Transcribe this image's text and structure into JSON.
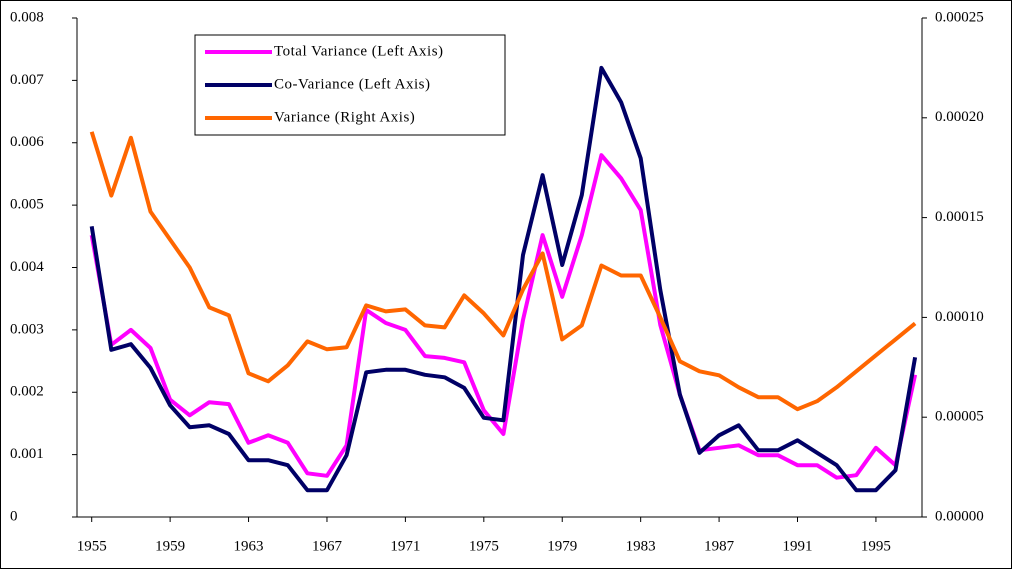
{
  "chart_data": {
    "type": "line",
    "x": [
      1955,
      1956,
      1957,
      1958,
      1959,
      1960,
      1961,
      1962,
      1963,
      1964,
      1965,
      1966,
      1967,
      1968,
      1969,
      1970,
      1971,
      1972,
      1973,
      1974,
      1975,
      1976,
      1977,
      1978,
      1979,
      1980,
      1981,
      1982,
      1983,
      1984,
      1985,
      1986,
      1987,
      1988,
      1989,
      1990,
      1991,
      1992,
      1993,
      1994,
      1995,
      1996,
      1997
    ],
    "xlim": [
      1954.25,
      1997.35
    ],
    "xticks": [
      1955,
      1959,
      1963,
      1967,
      1971,
      1975,
      1979,
      1983,
      1987,
      1991,
      1995
    ],
    "ylim": [
      0,
      0.008
    ],
    "yticks": [
      0,
      0.001,
      0.002,
      0.003,
      0.004,
      0.005,
      0.006,
      0.007,
      0.008
    ],
    "y2lim": [
      0,
      0.00025
    ],
    "y2ticks": [
      {
        "value": 0,
        "label": "0.00000"
      },
      {
        "value": 5e-05,
        "label": "0.00005"
      },
      {
        "value": 0.0001,
        "label": "0.00010"
      },
      {
        "value": 0.00015,
        "label": "0.00015"
      },
      {
        "value": 0.0002,
        "label": "0.00020"
      },
      {
        "value": 0.00025,
        "label": "0.00025"
      }
    ],
    "legend": "upper left",
    "series": [
      {
        "name": "Total Variance (Left Axis)",
        "color": "#ff00ff",
        "values": [
          0.00452,
          0.00276,
          0.003,
          0.00271,
          0.00188,
          0.00163,
          0.00184,
          0.00181,
          0.00119,
          0.00131,
          0.00119,
          0.0007,
          0.00066,
          0.00115,
          0.00332,
          0.00311,
          0.003,
          0.00258,
          0.00255,
          0.00248,
          0.00171,
          0.00133,
          0.00316,
          0.00452,
          0.00353,
          0.00452,
          0.0058,
          0.00543,
          0.00492,
          0.00308,
          0.00196,
          0.00107,
          0.00111,
          0.00115,
          0.00099,
          0.00099,
          0.00083,
          0.00083,
          0.00063,
          0.00067,
          0.00111,
          0.00083,
          0.00228
        ]
      },
      {
        "name": "Co-Variance (Left Axis)",
        "color": "#000066",
        "values": [
          0.00466,
          0.00268,
          0.00277,
          0.00239,
          0.00179,
          0.00144,
          0.00147,
          0.00133,
          0.00091,
          0.00091,
          0.00083,
          0.00043,
          0.00043,
          0.00099,
          0.00232,
          0.00236,
          0.00236,
          0.00228,
          0.00224,
          0.00207,
          0.00159,
          0.00155,
          0.0042,
          0.00548,
          0.00404,
          0.00516,
          0.0072,
          0.00665,
          0.00575,
          0.00364,
          0.00196,
          0.00103,
          0.00131,
          0.00147,
          0.00107,
          0.00107,
          0.00123,
          0.00103,
          0.00083,
          0.00043,
          0.00043,
          0.00075,
          0.00256
        ]
      },
      {
        "name": "Variance (Right Axis)",
        "color": "#ff6600",
        "axis": "y2",
        "values": [
          0.000193,
          0.000161,
          0.00019,
          0.000153,
          0.000139,
          0.000125,
          0.000105,
          0.000101,
          7.2e-05,
          6.8e-05,
          7.6e-05,
          8.8e-05,
          8.4e-05,
          8.5e-05,
          0.000106,
          0.000103,
          0.000104,
          9.6e-05,
          9.5e-05,
          0.000111,
          0.000102,
          9.1e-05,
          0.000114,
          0.000132,
          8.9e-05,
          9.6e-05,
          0.000126,
          0.000121,
          0.000121,
          0.0001,
          7.8e-05,
          7.3e-05,
          7.1e-05,
          6.5e-05,
          6e-05,
          6e-05,
          5.4e-05,
          5.8e-05,
          6.5e-05,
          7.3e-05,
          8.1e-05,
          8.9e-05,
          9.7e-05
        ]
      }
    ]
  }
}
